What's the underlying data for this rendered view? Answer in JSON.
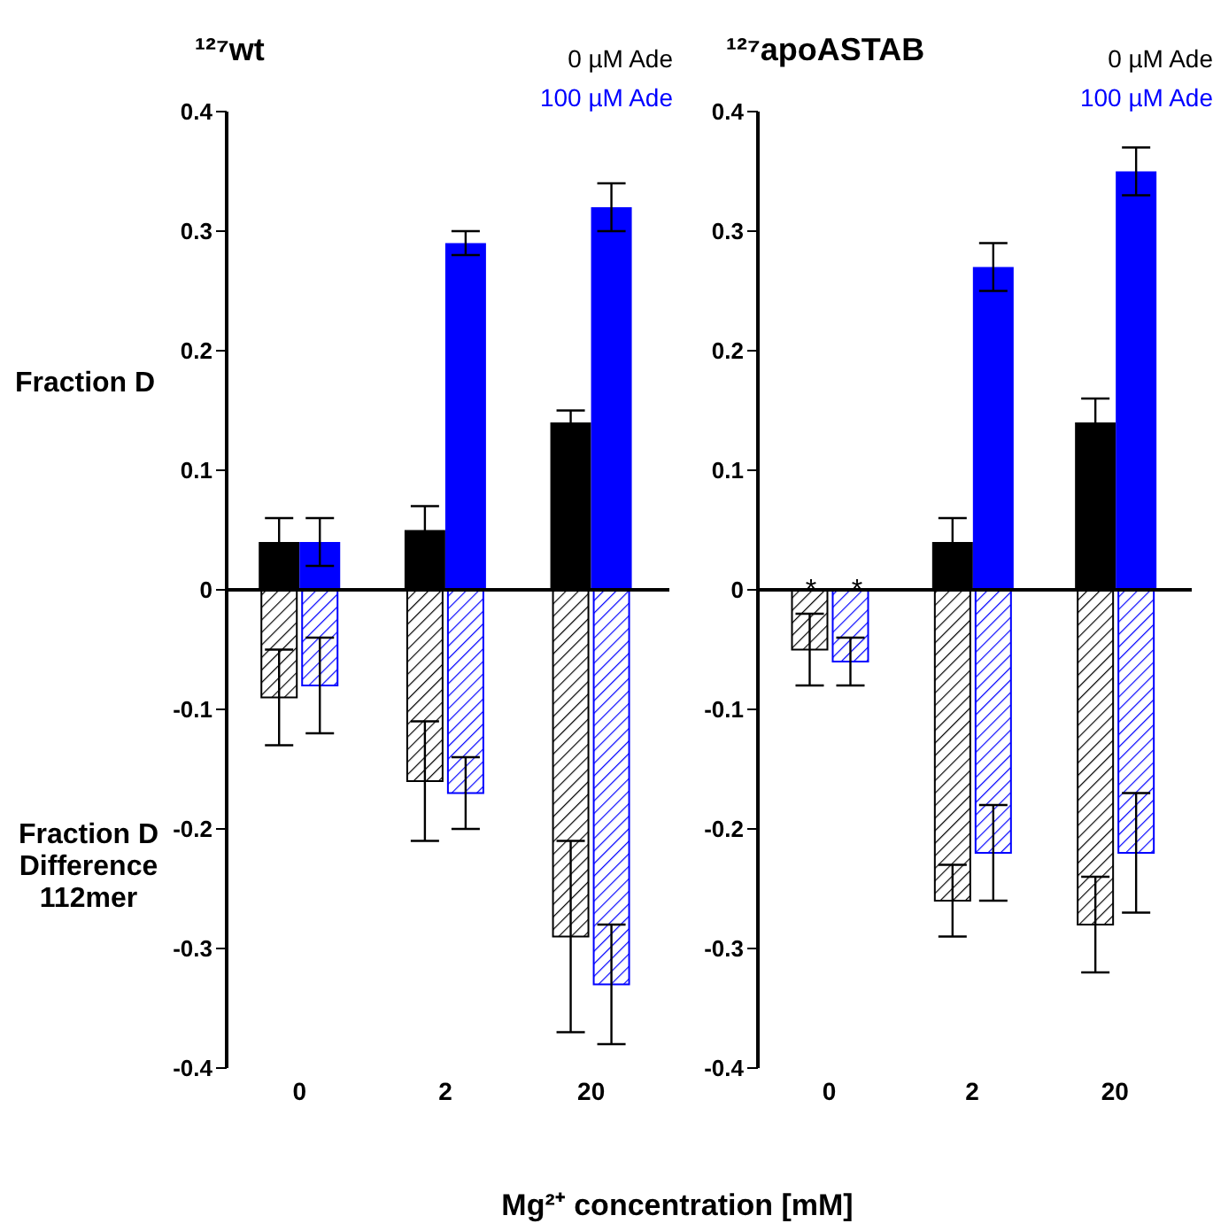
{
  "chart_data": [
    {
      "type": "bar",
      "title": "¹²⁷wt",
      "ylabel": "Fraction D",
      "xlabel": "Mg²⁺ concentration [mM]",
      "annotations": [
        "Fraction D Difference 112mer"
      ],
      "categories": [
        "0",
        "2",
        "20"
      ],
      "legend": "top right",
      "ylim": [
        -0.4,
        0.4
      ],
      "yticks": [
        -0.4,
        -0.3,
        -0.2,
        -0.1,
        0,
        0.1,
        0.2,
        0.3,
        0.4
      ],
      "grid": false,
      "series": [
        {
          "name": "0 µM Ade",
          "color": "#000000",
          "values": [
            0.04,
            0.05,
            0.14
          ],
          "errors": [
            0.02,
            0.02,
            0.01
          ]
        },
        {
          "color": "#000000",
          "values": [
            -0.09,
            -0.16,
            -0.29
          ],
          "errors": [
            0.04,
            0.05,
            0.08
          ]
        },
        {
          "name": "100 µM Ade",
          "color": "#0000ff",
          "values": [
            0.04,
            0.29,
            0.32
          ],
          "errors": [
            0.02,
            0.01,
            0.02
          ]
        },
        {
          "color": "#0000ff",
          "values": [
            -0.08,
            -0.17,
            -0.33
          ],
          "errors": [
            0.04,
            0.03,
            0.05
          ]
        }
      ]
    },
    {
      "type": "bar",
      "title": "¹²⁷apoASTAB",
      "annotations": [
        "*",
        "*"
      ],
      "categories": [
        "0",
        "2",
        "20"
      ],
      "legend": "top right",
      "ylim": [
        -0.4,
        0.4
      ],
      "yticks": [
        -0.4,
        -0.3,
        -0.2,
        -0.1,
        0,
        0.1,
        0.2,
        0.3,
        0.4
      ],
      "grid": false,
      "series": [
        {
          "name": "0 µM Ade",
          "color": "#000000",
          "values": [
            null,
            0.04,
            0.14
          ],
          "errors": [
            null,
            0.02,
            0.02
          ]
        },
        {
          "color": "#000000",
          "values": [
            -0.05,
            -0.26,
            -0.28
          ],
          "errors": [
            0.03,
            0.03,
            0.04
          ]
        },
        {
          "name": "100 µM Ade",
          "color": "#0000ff",
          "values": [
            null,
            0.27,
            0.35
          ],
          "errors": [
            null,
            0.02,
            0.02
          ]
        },
        {
          "color": "#0000ff",
          "values": [
            -0.06,
            -0.22,
            -0.22
          ],
          "errors": [
            0.02,
            0.04,
            0.05
          ]
        }
      ]
    }
  ]
}
